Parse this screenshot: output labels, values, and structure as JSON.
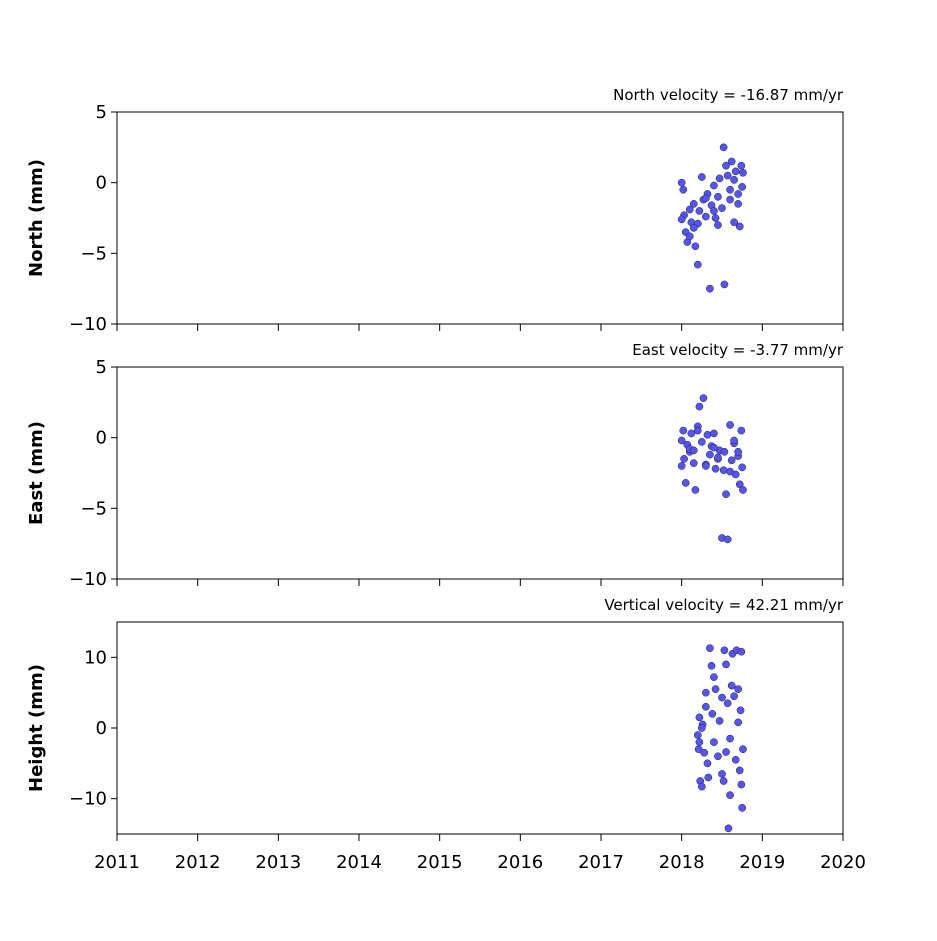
{
  "chart_data": [
    {
      "type": "scatter",
      "title": "North velocity = -16.87 mm/yr",
      "y_label": "North (mm)",
      "color": "#5555f5",
      "xlim": [
        2011,
        2020
      ],
      "xticks": [
        2011,
        2012,
        2013,
        2014,
        2015,
        2016,
        2017,
        2018,
        2019,
        2020
      ],
      "ylim": [
        -10,
        5
      ],
      "yticks": [
        {
          "value": -10,
          "label": "−10"
        },
        {
          "value": -5,
          "label": "−5"
        },
        0,
        5
      ],
      "x": [
        2018.0,
        2018.02,
        2018.03,
        2018.05,
        2018.07,
        2018.1,
        2018.12,
        2018.15,
        2018.17,
        2018.2,
        2018.22,
        2018.25,
        2018.27,
        2018.3,
        2018.32,
        2018.35,
        2018.37,
        2018.4,
        2018.42,
        2018.45,
        2018.47,
        2018.5,
        2018.52,
        2018.53,
        2018.55,
        2018.57,
        2018.6,
        2018.62,
        2018.65,
        2018.67,
        2018.7,
        2018.72,
        2018.74,
        2018.75,
        2018.76,
        2018.1,
        2018.2,
        2018.3,
        2018.4,
        2018.45,
        2018.6,
        2018.65,
        2018.7,
        2018.0,
        2018.15
      ],
      "values": [
        0,
        -0.5,
        -2.3,
        -3.5,
        -4.2,
        -3.8,
        -2.8,
        -1.5,
        -4.5,
        -5.8,
        -2,
        0.4,
        -1.2,
        -2.4,
        -0.8,
        -7.5,
        -1.6,
        -0.2,
        -2.5,
        -1.0,
        0.3,
        -1.8,
        2.5,
        -7.2,
        1.2,
        0.5,
        -0.5,
        1.5,
        -2.8,
        0.8,
        -1.5,
        -3.1,
        1.2,
        -0.3,
        0.7,
        -1.9,
        -2.9,
        -1.1,
        -2.0,
        -3.0,
        -1.2,
        0.2,
        -0.8,
        -2.6,
        -3.2
      ]
    },
    {
      "type": "scatter",
      "title": "East velocity = -3.77 mm/yr",
      "y_label": "East (mm)",
      "color": "#5555f5",
      "xlim": [
        2011,
        2020
      ],
      "xticks": [
        2011,
        2012,
        2013,
        2014,
        2015,
        2016,
        2017,
        2018,
        2019,
        2020
      ],
      "ylim": [
        -10,
        5
      ],
      "yticks": [
        {
          "value": -10,
          "label": "−10"
        },
        {
          "value": -5,
          "label": "−5"
        },
        0,
        5
      ],
      "x": [
        2018.0,
        2018.02,
        2018.03,
        2018.05,
        2018.07,
        2018.1,
        2018.12,
        2018.15,
        2018.17,
        2018.2,
        2018.22,
        2018.25,
        2018.27,
        2018.3,
        2018.32,
        2018.35,
        2018.37,
        2018.4,
        2018.42,
        2018.45,
        2018.47,
        2018.5,
        2018.52,
        2018.53,
        2018.55,
        2018.57,
        2018.6,
        2018.62,
        2018.65,
        2018.67,
        2018.7,
        2018.72,
        2018.74,
        2018.75,
        2018.76,
        2018.1,
        2018.2,
        2018.3,
        2018.4,
        2018.45,
        2018.6,
        2018.65,
        2018.7,
        2018.0,
        2018.15
      ],
      "values": [
        -0.2,
        0.5,
        -1.5,
        -3.2,
        -0.5,
        -1.0,
        0.3,
        -1.8,
        -3.7,
        0.8,
        2.2,
        -0.3,
        2.8,
        -1.9,
        0.2,
        -1.2,
        -0.6,
        0.3,
        -2.2,
        -1.5,
        -0.9,
        -7.1,
        -2.3,
        -1.0,
        -4.0,
        -7.2,
        0.9,
        -1.6,
        -0.4,
        -2.6,
        -1.3,
        -3.3,
        0.5,
        -2.1,
        -3.7,
        -0.8,
        0.5,
        -2.0,
        -0.7,
        -1.4,
        -2.4,
        -0.2,
        -1.0,
        -2.0,
        -0.9
      ]
    },
    {
      "type": "scatter",
      "title": "Vertical velocity = 42.21 mm/yr",
      "y_label": "Height (mm)",
      "color": "#5555f5",
      "xlim": [
        2011,
        2020
      ],
      "xticks": [
        2011,
        2012,
        2013,
        2014,
        2015,
        2016,
        2017,
        2018,
        2019,
        2020
      ],
      "ylim": [
        -15,
        15
      ],
      "yticks": [
        {
          "value": -10,
          "label": "−10"
        },
        0,
        10
      ],
      "x": [
        2018.2,
        2018.21,
        2018.22,
        2018.23,
        2018.25,
        2018.26,
        2018.28,
        2018.3,
        2018.32,
        2018.33,
        2018.35,
        2018.37,
        2018.38,
        2018.4,
        2018.42,
        2018.45,
        2018.47,
        2018.5,
        2018.52,
        2018.53,
        2018.55,
        2018.57,
        2018.58,
        2018.6,
        2018.62,
        2018.63,
        2018.65,
        2018.67,
        2018.68,
        2018.7,
        2018.72,
        2018.73,
        2018.74,
        2018.75,
        2018.76,
        2018.22,
        2018.3,
        2018.4,
        2018.5,
        2018.6,
        2018.7,
        2018.74,
        2018.25,
        2018.55
      ],
      "values": [
        -1,
        -3,
        1.5,
        -7.5,
        -8.3,
        0.5,
        -3.5,
        3,
        -5,
        -7,
        11.3,
        8.8,
        2,
        -2,
        5.5,
        -4,
        1,
        -6.5,
        -7.5,
        11,
        9,
        3.5,
        -14.2,
        -1.5,
        6,
        10.5,
        4.5,
        -4.5,
        11,
        0.8,
        -6,
        2.5,
        10.8,
        -11.3,
        -3,
        -2,
        5,
        7.2,
        4.3,
        -9.5,
        5.5,
        -8,
        0,
        -3.4
      ]
    }
  ]
}
